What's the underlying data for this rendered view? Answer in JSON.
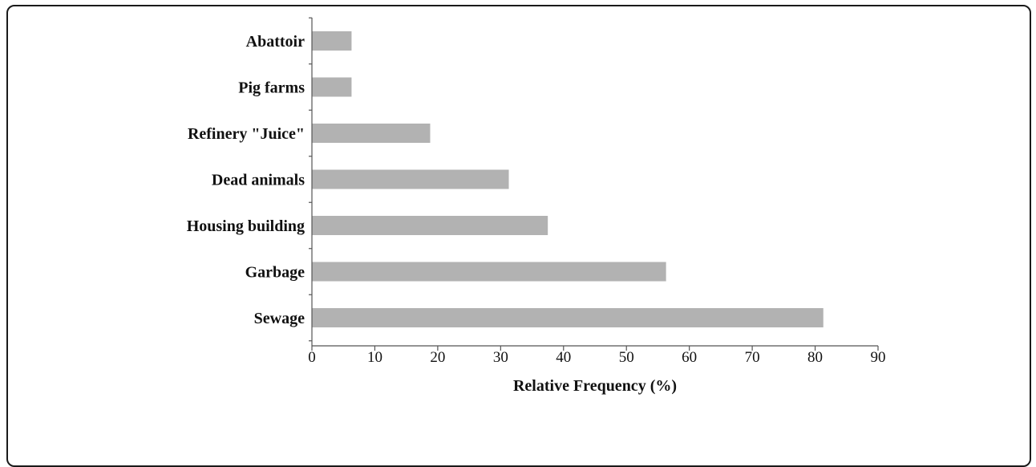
{
  "chart_data": {
    "type": "bar",
    "orientation": "horizontal",
    "title": "",
    "xlabel": "Relative Frequency (%)",
    "ylabel": "",
    "categories": [
      "Abattoir",
      "Pig farms",
      "Refinery \"Juice\"",
      "Dead animals",
      "Housing building",
      "Garbage",
      "Sewage"
    ],
    "values": [
      6.3,
      6.3,
      18.8,
      31.3,
      37.5,
      56.3,
      81.3
    ],
    "xlim": [
      0,
      90
    ],
    "xticks": [
      "0",
      "10",
      "20",
      "30",
      "40",
      "50",
      "60",
      "70",
      "80",
      "90"
    ],
    "grid": false,
    "legend": "none",
    "bar_color": "#b2b2b2"
  }
}
